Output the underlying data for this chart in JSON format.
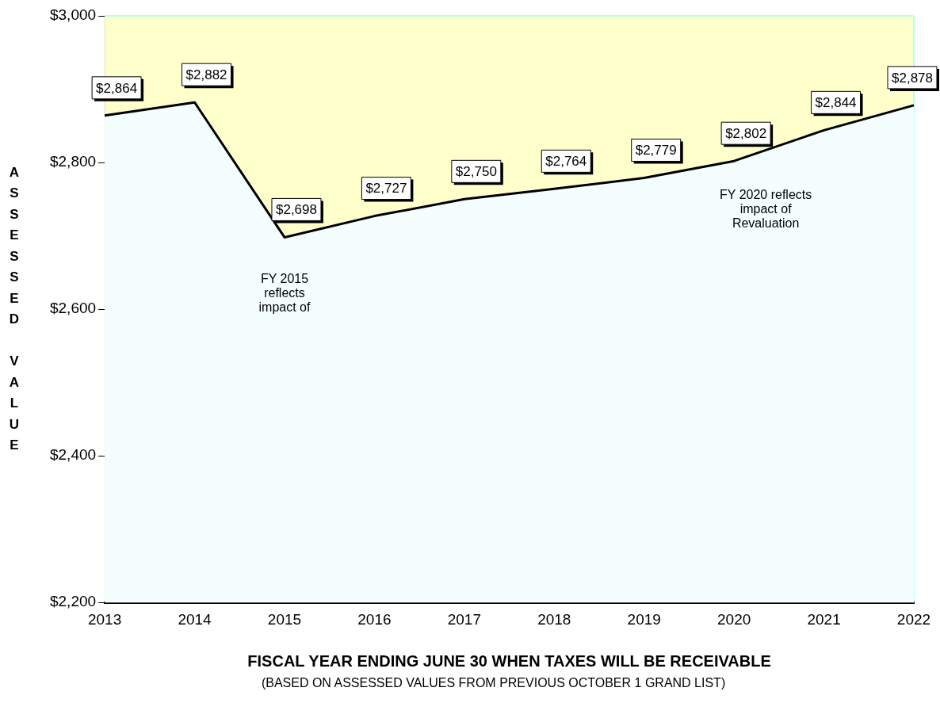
{
  "chart_data": {
    "type": "area",
    "xlabel": "FISCAL YEAR ENDING JUNE 30 WHEN TAXES WILL BE RECEIVABLE",
    "ylabel": "ASSESSED VALUE",
    "categories": [
      "2013",
      "2014",
      "2015",
      "2016",
      "2017",
      "2018",
      "2019",
      "2020",
      "2021",
      "2022"
    ],
    "values": [
      2864,
      2882,
      2698,
      2727,
      2750,
      2764,
      2779,
      2802,
      2844,
      2878
    ],
    "value_labels": [
      "$2,864",
      "$2,882",
      "$2,698",
      "$2,727",
      "$2,750",
      "$2,764",
      "$2,779",
      "$2,802",
      "$2,844",
      "$2,878"
    ],
    "color": "#000000",
    "ylim": [
      2200,
      3000
    ],
    "yticks": [
      {
        "value": 2200,
        "label": "$2,200"
      },
      {
        "value": 2400,
        "label": "$2,400"
      },
      {
        "value": 2600,
        "label": "$2,600"
      },
      {
        "value": 2800,
        "label": "$2,800"
      },
      {
        "value": 3000,
        "label": "$3,000"
      }
    ],
    "grid": false,
    "legend": false,
    "bands": [
      {
        "axis": "y",
        "from": 2200,
        "to": 3000,
        "color": "#ffffcc"
      }
    ],
    "annotations": [
      "FY 2015 reflects impact of",
      "FY 2020 reflects impact of Revaluation",
      "(BASED ON ASSESSED VALUES FROM PREVIOUS OCTOBER 1 GRAND LIST)"
    ]
  }
}
